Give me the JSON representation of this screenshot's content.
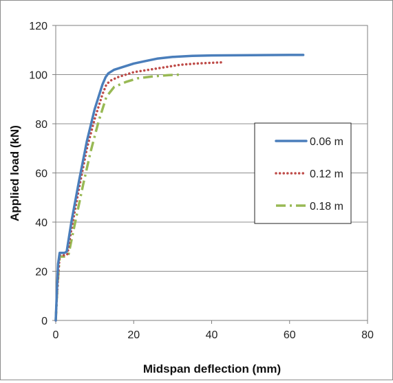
{
  "chart_data": {
    "type": "line",
    "title": "",
    "xlabel": "Midspan deflection (mm)",
    "ylabel": "Applied load (kN)",
    "xlim": [
      0,
      80
    ],
    "ylim": [
      0,
      120
    ],
    "xticks": [
      0,
      20,
      40,
      60,
      80
    ],
    "yticks": [
      0,
      20,
      40,
      60,
      80,
      100,
      120
    ],
    "xtick_labels": [
      "0",
      "20",
      "40",
      "60",
      "80"
    ],
    "ytick_labels": [
      "0",
      "20",
      "40",
      "60",
      "80",
      "100",
      "120"
    ],
    "grid": "horizontal",
    "legend_position": "right",
    "series": [
      {
        "name": "0.06 m",
        "color": "#4a7ebb",
        "style": "solid",
        "x": [
          0,
          0.3,
          0.6,
          1.0,
          2.3,
          2.8,
          4,
          6,
          8,
          10,
          12,
          12.8,
          13.5,
          15,
          17,
          20,
          23,
          26,
          30,
          35,
          40,
          50,
          60,
          63.5
        ],
        "y": [
          0,
          12,
          23,
          27.5,
          27.5,
          28,
          40,
          57,
          73,
          86,
          96,
          99,
          100.5,
          102,
          103,
          104.5,
          105.5,
          106.5,
          107.2,
          107.6,
          107.8,
          107.9,
          108,
          108
        ]
      },
      {
        "name": "0.12 m",
        "color": "#be4b48",
        "style": "dotted",
        "x": [
          0,
          0.3,
          0.7,
          1.0,
          2.5,
          3.0,
          4,
          6,
          8,
          10,
          12,
          13,
          14,
          16,
          18,
          20,
          24,
          28,
          32,
          36,
          40,
          43
        ],
        "y": [
          0,
          10,
          20,
          26.5,
          26.5,
          27,
          37,
          54,
          70,
          82,
          92,
          96,
          97.5,
          99,
          100,
          101,
          102,
          103,
          104,
          104.5,
          104.8,
          105
        ]
      },
      {
        "name": "0.18 m",
        "color": "#98b954",
        "style": "dashdot",
        "x": [
          0,
          0.3,
          0.7,
          1.0,
          2.8,
          3.3,
          5,
          7,
          9,
          11,
          13,
          15,
          18,
          21,
          25,
          29,
          32
        ],
        "y": [
          0,
          10,
          20,
          26,
          26,
          27,
          40,
          55,
          69,
          81,
          91,
          95,
          97,
          98.5,
          99.3,
          99.8,
          100
        ]
      }
    ]
  }
}
